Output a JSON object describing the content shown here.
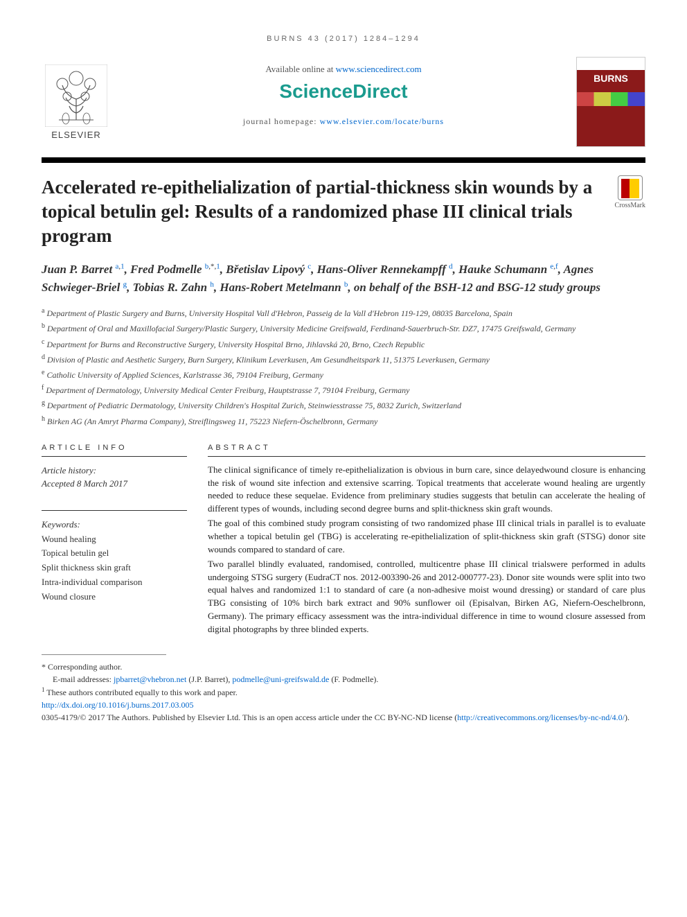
{
  "running_header": "BURNS 43 (2017) 1284–1294",
  "header": {
    "available_online_text": "Available online at ",
    "available_online_link": "www.sciencedirect.com",
    "sciencedirect": "ScienceDirect",
    "journal_homepage_label": "journal homepage: ",
    "journal_homepage_link": "www.elsevier.com/locate/burns",
    "elsevier_label": "ELSEVIER",
    "journal_cover_title": "BURNS"
  },
  "crossmark_label": "CrossMark",
  "title": "Accelerated re-epithelialization of partial-thickness skin wounds by a topical betulin gel: Results of a randomized phase III clinical trials program",
  "authors_html": "Juan P. Barret <sup><a>a</a>,<a>1</a></sup>, Fred Podmelle <sup><a>b</a>,*,<a>1</a></sup>, Břetislav Lipový <sup><a>c</a></sup>, Hans-Oliver Rennekampff <sup><a>d</a></sup>, Hauke Schumann <sup><a>e</a>,<a>f</a></sup>, Agnes Schwieger-Briel <sup><a>g</a></sup>, Tobias R. Zahn <sup><a>h</a></sup>, Hans-Robert Metelmann <sup><a>b</a></sup>, on behalf of the BSH-12 and BSG-12 study groups",
  "affiliations": [
    {
      "sup": "a",
      "text": "Department of Plastic Surgery and Burns, University Hospital Vall d'Hebron, Passeig de la Vall d'Hebron 119-129, 08035 Barcelona, Spain"
    },
    {
      "sup": "b",
      "text": "Department of Oral and Maxillofacial Surgery/Plastic Surgery, University Medicine Greifswald, Ferdinand-Sauerbruch-Str. DZ7, 17475 Greifswald, Germany"
    },
    {
      "sup": "c",
      "text": "Department for Burns and Reconstructive Surgery, University Hospital Brno, Jihlavská 20, Brno, Czech Republic"
    },
    {
      "sup": "d",
      "text": "Division of Plastic and Aesthetic Surgery, Burn Surgery, Klinikum Leverkusen, Am Gesundheitspark 11, 51375 Leverkusen, Germany"
    },
    {
      "sup": "e",
      "text": "Catholic University of Applied Sciences, Karlstrasse 36, 79104 Freiburg, Germany"
    },
    {
      "sup": "f",
      "text": "Department of Dermatology, University Medical Center Freiburg, Hauptstrasse 7, 79104 Freiburg, Germany"
    },
    {
      "sup": "g",
      "text": "Department of Pediatric Dermatology, University Children's Hospital Zurich, Steinwiesstrasse 75, 8032 Zurich, Switzerland"
    },
    {
      "sup": "h",
      "text": "Birken AG (An Amryt Pharma Company), Streiflingsweg 11, 75223 Niefern-Öschelbronn, Germany"
    }
  ],
  "article_info": {
    "heading": "ARTICLE INFO",
    "history_label": "Article history:",
    "history_value": "Accepted 8 March 2017",
    "keywords_label": "Keywords:",
    "keywords": [
      "Wound healing",
      "Topical betulin gel",
      "Split thickness skin graft",
      "Intra-individual comparison",
      "Wound closure"
    ]
  },
  "abstract": {
    "heading": "ABSTRACT",
    "paragraphs": [
      "The clinical significance of timely re-epithelialization is obvious in burn care, since delayedwound closure is enhancing the risk of wound site infection and extensive scarring. Topical treatments that accelerate wound healing are urgently needed to reduce these sequelae. Evidence from preliminary studies suggests that betulin can accelerate the healing of different types of wounds, including second degree burns and split-thickness skin graft wounds.",
      "The goal of this combined study program consisting of two randomized phase III clinical trials in parallel is to evaluate whether a topical betulin gel (TBG) is accelerating re-epithelialization of split-thickness skin graft (STSG) donor site wounds compared to standard of care.",
      "Two parallel blindly evaluated, randomised, controlled, multicentre phase III clinical trialswere performed in adults undergoing STSG surgery (EudraCT nos. 2012-003390-26 and 2012-000777-23). Donor site wounds were split into two equal halves and randomized 1:1 to standard of care (a non-adhesive moist wound dressing) or standard of care plus TBG consisting of 10% birch bark extract and 90% sunflower oil (Episalvan, Birken AG, Niefern-Oeschelbronn, Germany). The primary efficacy assessment was the intra-individual difference in time to wound closure assessed from digital photographs by three blinded experts."
    ]
  },
  "footnotes": {
    "corresponding": "* Corresponding author.",
    "emails_label": "E-mail addresses: ",
    "email1": "jpbarret@vhebron.net",
    "email1_who": " (J.P. Barret), ",
    "email2": "podmelle@uni-greifswald.de",
    "email2_who": " (F. Podmelle).",
    "equal_contrib": "These authors contributed equally to this work and paper.",
    "doi": "http://dx.doi.org/10.1016/j.burns.2017.03.005",
    "copyright_prefix": "0305-4179/© 2017 The Authors. Published by Elsevier Ltd. This is an open access article under the CC BY-NC-ND license (",
    "license_link": "http://creativecommons.org/licenses/by-nc-nd/4.0/",
    "copyright_suffix": ")."
  },
  "colors": {
    "link": "#0066cc",
    "sciencedirect": "#1a9b8e",
    "journal_red": "#8b1a1a"
  }
}
